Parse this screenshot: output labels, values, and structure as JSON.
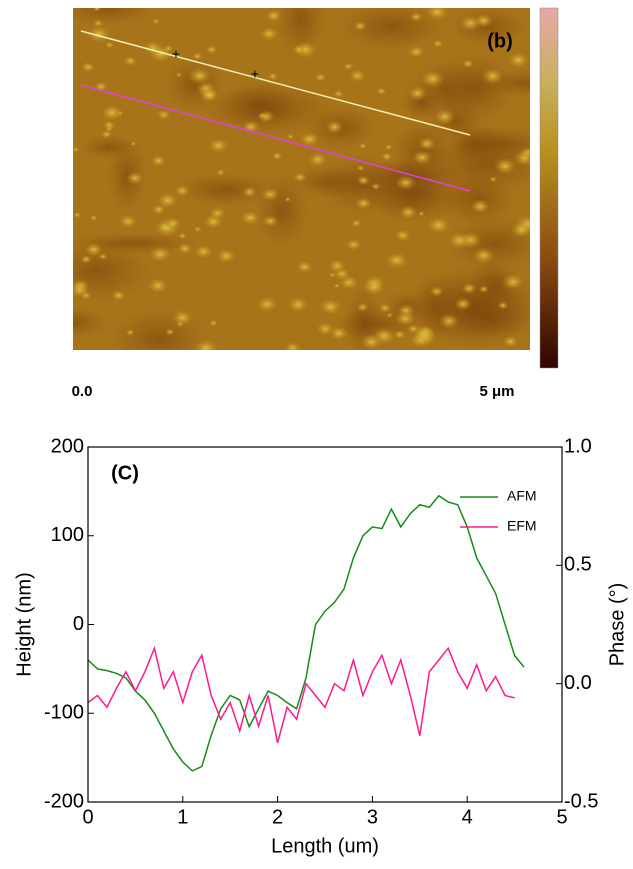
{
  "image": {
    "label": "(b)",
    "scale_start": "0.0",
    "scale_end": "5 μm"
  },
  "chart_data": {
    "type": "line",
    "title": "(C)",
    "x_label": "Length (um)",
    "y_label": "Height (nm)",
    "y2_label": "Phase (°)",
    "xlim": [
      0,
      5
    ],
    "xticks": [
      0,
      1,
      2,
      3,
      4,
      5
    ],
    "ylim": [
      -200,
      200
    ],
    "yticks": [
      -200,
      -100,
      0,
      100,
      200
    ],
    "y2lim": [
      -0.5,
      1.0
    ],
    "y2ticks": [
      {
        "value": -0.5,
        "label": "-0.5"
      },
      {
        "value": 0,
        "label": "0.0"
      },
      0.5,
      {
        "value": 1,
        "label": "1.0"
      }
    ],
    "legend": "upper right",
    "series": [
      {
        "name": "AFM",
        "color": "#1a8a1a",
        "x": [
          0,
          0.1,
          0.2,
          0.3,
          0.4,
          0.5,
          0.6,
          0.7,
          0.8,
          0.9,
          1.0,
          1.1,
          1.2,
          1.3,
          1.4,
          1.5,
          1.6,
          1.7,
          1.8,
          1.9,
          2.0,
          2.1,
          2.2,
          2.3,
          2.4,
          2.5,
          2.6,
          2.7,
          2.8,
          2.9,
          3.0,
          3.1,
          3.2,
          3.3,
          3.4,
          3.5,
          3.6,
          3.7,
          3.8,
          3.9,
          4.0,
          4.1,
          4.2,
          4.3,
          4.4,
          4.5,
          4.6
        ],
        "values": [
          -40,
          -50,
          -52,
          -55,
          -60,
          -75,
          -85,
          -100,
          -120,
          -140,
          -155,
          -165,
          -160,
          -125,
          -95,
          -80,
          -85,
          -115,
          -95,
          -75,
          -80,
          -88,
          -95,
          -60,
          0,
          15,
          25,
          40,
          75,
          100,
          110,
          108,
          130,
          110,
          125,
          135,
          132,
          145,
          138,
          135,
          110,
          75,
          55,
          35,
          0,
          -35,
          -48
        ]
      },
      {
        "name": "EFM",
        "color": "#ff1a8c",
        "axis": "y2",
        "x": [
          0,
          0.1,
          0.2,
          0.3,
          0.4,
          0.5,
          0.6,
          0.7,
          0.8,
          0.9,
          1.0,
          1.1,
          1.2,
          1.3,
          1.4,
          1.5,
          1.6,
          1.7,
          1.8,
          1.9,
          2.0,
          2.1,
          2.2,
          2.3,
          2.4,
          2.5,
          2.6,
          2.7,
          2.8,
          2.9,
          3.0,
          3.1,
          3.2,
          3.3,
          3.4,
          3.5,
          3.6,
          3.7,
          3.8,
          3.9,
          4.0,
          4.1,
          4.2,
          4.3,
          4.4,
          4.5
        ],
        "values": [
          -0.08,
          -0.05,
          -0.1,
          -0.02,
          0.05,
          -0.03,
          0.05,
          0.15,
          -0.02,
          0.05,
          -0.08,
          0.05,
          0.12,
          -0.05,
          -0.15,
          -0.08,
          -0.2,
          -0.05,
          -0.18,
          -0.05,
          -0.25,
          -0.1,
          -0.15,
          0,
          -0.05,
          -0.1,
          0,
          -0.03,
          0.1,
          -0.05,
          0.05,
          0.12,
          0,
          0.1,
          -0.05,
          -0.22,
          0.05,
          0.1,
          0.15,
          0.05,
          -0.02,
          0.08,
          -0.03,
          0.03,
          -0.05,
          -0.06
        ]
      }
    ]
  }
}
